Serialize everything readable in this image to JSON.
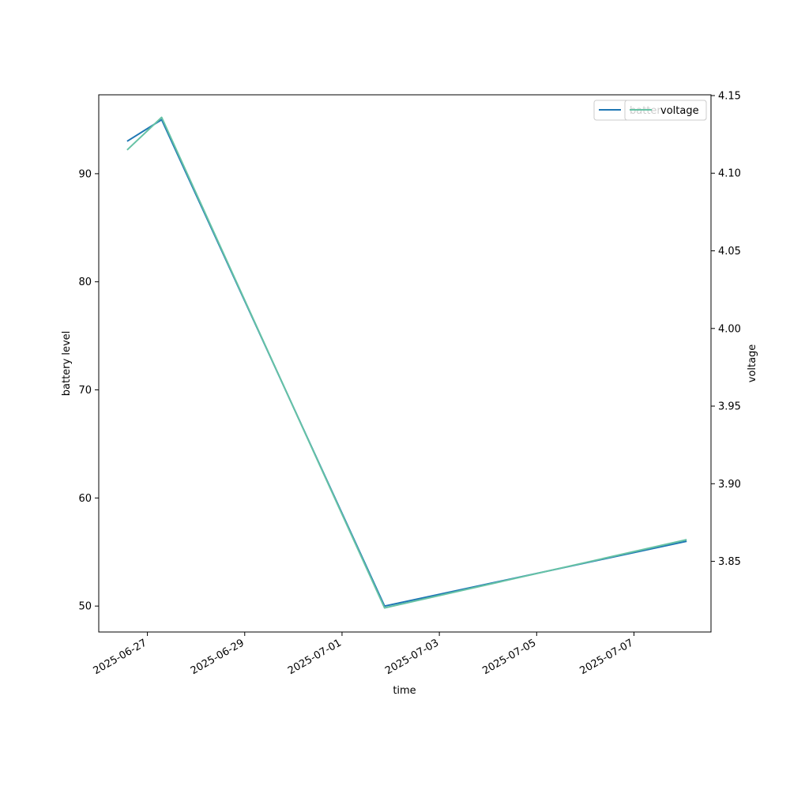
{
  "chart_data": {
    "type": "line",
    "title": "",
    "xlabel": "time",
    "ylabel_left": "battery level",
    "ylabel_right": "voltage",
    "x": [
      "2025-06-26 14:00",
      "2025-06-27 07:00",
      "2025-07-01 21:00",
      "2025-07-08 02:00"
    ],
    "x_ticks": [
      "2025-06-27",
      "2025-06-29",
      "2025-07-01",
      "2025-07-03",
      "2025-07-05",
      "2025-07-07"
    ],
    "xlim": [
      "2025-06-26 00:00",
      "2025-07-08 14:00"
    ],
    "ylim_left": [
      47.6,
      97.3
    ],
    "ylim_right": [
      3.8045,
      4.1505
    ],
    "yticks_left": [
      50,
      60,
      70,
      80,
      90
    ],
    "yticks_right": [
      3.85,
      3.9,
      3.95,
      4.0,
      4.05,
      4.1,
      4.15
    ],
    "yticks_right_labels": [
      "3.85",
      "3.90",
      "3.95",
      "4.00",
      "4.05",
      "4.10",
      "4.15"
    ],
    "grid": false,
    "legend_placement": "top-right",
    "series": [
      {
        "name": "battery",
        "axis": "left",
        "color": "#1f77b4",
        "values": [
          93,
          95,
          50,
          56
        ]
      },
      {
        "name": "voltage",
        "axis": "right",
        "color": "#66c2a5",
        "values": [
          4.115,
          4.136,
          3.82,
          3.864
        ]
      }
    ],
    "legend": {
      "battery_label_partial": "batter",
      "voltage_label": "voltage"
    }
  }
}
